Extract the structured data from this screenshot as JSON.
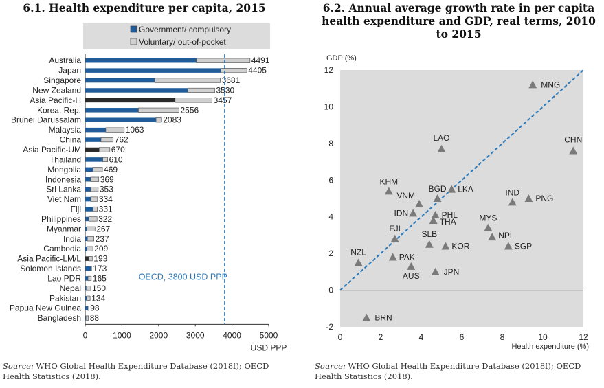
{
  "chart_data": [
    {
      "type": "bar",
      "orientation": "horizontal",
      "stacked": true,
      "title": "6.1. Health expenditure per capita, 2015",
      "xlabel": "USD PPP",
      "xlim": [
        0,
        5000
      ],
      "xticks": [
        "0",
        "1000",
        "2000",
        "3000",
        "4000",
        "5000"
      ],
      "legend": {
        "placement": "top",
        "entries": [
          "Government/ compulsory",
          "Voluntary/ out-of-pocket"
        ]
      },
      "categories": [
        "Australia",
        "Japan",
        "Singapore",
        "New Zealand",
        "Asia Pacific-H",
        "Korea, Rep.",
        "Brunei Darussalam",
        "Malaysia",
        "China",
        "Asia Pacific-UM",
        "Thailand",
        "Mongolia",
        "Indonesia",
        "Sri Lanka",
        "Viet Nam",
        "Fiji",
        "Philippines",
        "Myanmar",
        "India",
        "Cambodia",
        "Asia Pacific-LM/L",
        "Solomon Islands",
        "Lao PDR",
        "Nepal",
        "Pakistan",
        "Papua New Guinea",
        "Bangladesh"
      ],
      "aggregates": [
        "Asia Pacific-H",
        "Asia Pacific-UM",
        "Asia Pacific-LM/L"
      ],
      "series": [
        {
          "name": "Government/ compulsory",
          "values": [
            3030,
            3700,
            1900,
            2800,
            2450,
            1450,
            1930,
            560,
            430,
            380,
            480,
            210,
            150,
            150,
            150,
            210,
            100,
            40,
            60,
            50,
            95,
            160,
            75,
            25,
            40,
            70,
            20
          ]
        },
        {
          "name": "Voluntary/ out-of-pocket",
          "values": [
            1461,
            705,
            1781,
            730,
            1007,
            1106,
            153,
            503,
            332,
            290,
            130,
            259,
            219,
            203,
            184,
            121,
            222,
            227,
            177,
            159,
            98,
            13,
            90,
            125,
            94,
            28,
            68
          ]
        }
      ],
      "totals": [
        "4491",
        "4405",
        "3681",
        "3530",
        "3457",
        "2556",
        "2083",
        "1063",
        "762",
        "670",
        "610",
        "469",
        "369",
        "353",
        "334",
        "331",
        "322",
        "267",
        "237",
        "209",
        "193",
        "173",
        "165",
        "150",
        "134",
        "98",
        "88"
      ],
      "reference_line": {
        "value": 3800,
        "label": "OECD, 3800 USD PPP"
      },
      "colors": {
        "government": "#1f5c99",
        "voluntary": "#d0d0d0",
        "aggregate": "#2b2b2b",
        "refline": "#2e7ab8"
      }
    },
    {
      "type": "scatter",
      "title": "6.2. Annual average growth rate in per capita health expenditure and GDP, real terms, 2010 to 2015",
      "xlabel": "Health expenditure (%)",
      "ylabel": "GDP (%)",
      "xlim": [
        0,
        12
      ],
      "ylim": [
        -2,
        12
      ],
      "xticks": [
        "0",
        "2",
        "4",
        "6",
        "8",
        "10",
        "12"
      ],
      "yticks": [
        "-2",
        "0",
        "2",
        "4",
        "6",
        "8",
        "10",
        "12"
      ],
      "grid": false,
      "diagonal": "y = x",
      "points": [
        {
          "label": "MNG",
          "x": 9.5,
          "y": 11.2
        },
        {
          "label": "CHN",
          "x": 11.5,
          "y": 7.6
        },
        {
          "label": "LAO",
          "x": 5.0,
          "y": 7.7
        },
        {
          "label": "KHM",
          "x": 2.4,
          "y": 5.4
        },
        {
          "label": "BGD",
          "x": 4.8,
          "y": 5.0
        },
        {
          "label": "LKA",
          "x": 5.5,
          "y": 5.5
        },
        {
          "label": "VNM",
          "x": 3.9,
          "y": 4.7
        },
        {
          "label": "IND",
          "x": 8.5,
          "y": 4.8
        },
        {
          "label": "PNG",
          "x": 9.3,
          "y": 5.0
        },
        {
          "label": "IDN",
          "x": 3.6,
          "y": 4.2
        },
        {
          "label": "PHL",
          "x": 4.7,
          "y": 4.1
        },
        {
          "label": "THA",
          "x": 4.6,
          "y": 3.8
        },
        {
          "label": "MYS",
          "x": 7.3,
          "y": 3.4
        },
        {
          "label": "NPL",
          "x": 7.5,
          "y": 2.9
        },
        {
          "label": "FJI",
          "x": 2.7,
          "y": 2.8
        },
        {
          "label": "SLB",
          "x": 4.4,
          "y": 2.5
        },
        {
          "label": "KOR",
          "x": 5.2,
          "y": 2.4
        },
        {
          "label": "SGP",
          "x": 8.3,
          "y": 2.4
        },
        {
          "label": "NZL",
          "x": 0.9,
          "y": 1.5
        },
        {
          "label": "PAK",
          "x": 2.6,
          "y": 1.8
        },
        {
          "label": "AUS",
          "x": 3.5,
          "y": 1.3
        },
        {
          "label": "JPN",
          "x": 4.7,
          "y": 1.0
        },
        {
          "label": "BRN",
          "x": 1.3,
          "y": -1.5
        }
      ],
      "colors": {
        "marker": "#7a7a7a",
        "diagonal": "#2e7ab8"
      }
    }
  ],
  "sources": {
    "prefix": "Source:",
    "left": "WHO Global Health Expenditure Database (2018f); OECD Health Statistics (2018).",
    "right": "WHO Global Health Expenditure Database (2018f); OECD Health Statistics (2018)."
  }
}
